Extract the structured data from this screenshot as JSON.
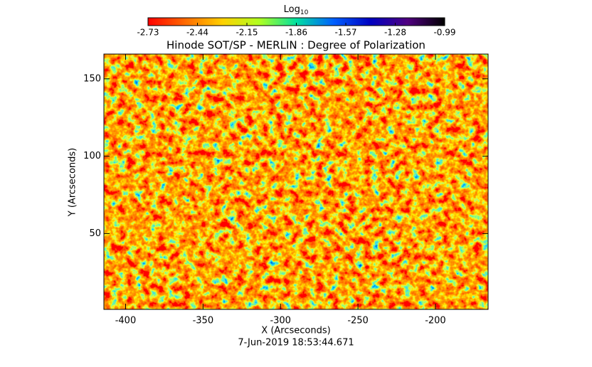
{
  "chart_data": {
    "type": "image",
    "title": "Hinode SOT/SP - MERLIN : Degree of Polarization",
    "colorbar_label": "Log",
    "colorbar_label_subscript": "10",
    "colorbar_lim": [
      -2.73,
      -0.99
    ],
    "colorbar_ticks": [
      -2.73,
      -2.44,
      -2.15,
      -1.86,
      -1.57,
      -1.28,
      -0.99
    ],
    "colormap": [
      "#ff0000",
      "#ff6a00",
      "#ffd000",
      "#b0ff20",
      "#00e0a0",
      "#0060ff",
      "#0000c0",
      "#500080",
      "#000000"
    ],
    "x_label": "X (Arcseconds)",
    "y_label": "Y (Arcseconds)",
    "date": "7-Jun-2019 18:53:44.671",
    "xlim": [
      -414,
      -166
    ],
    "ylim": [
      1,
      166
    ],
    "xticks": [
      -400,
      -350,
      -300,
      -250,
      -200
    ],
    "yticks": [
      50,
      100,
      150
    ]
  }
}
